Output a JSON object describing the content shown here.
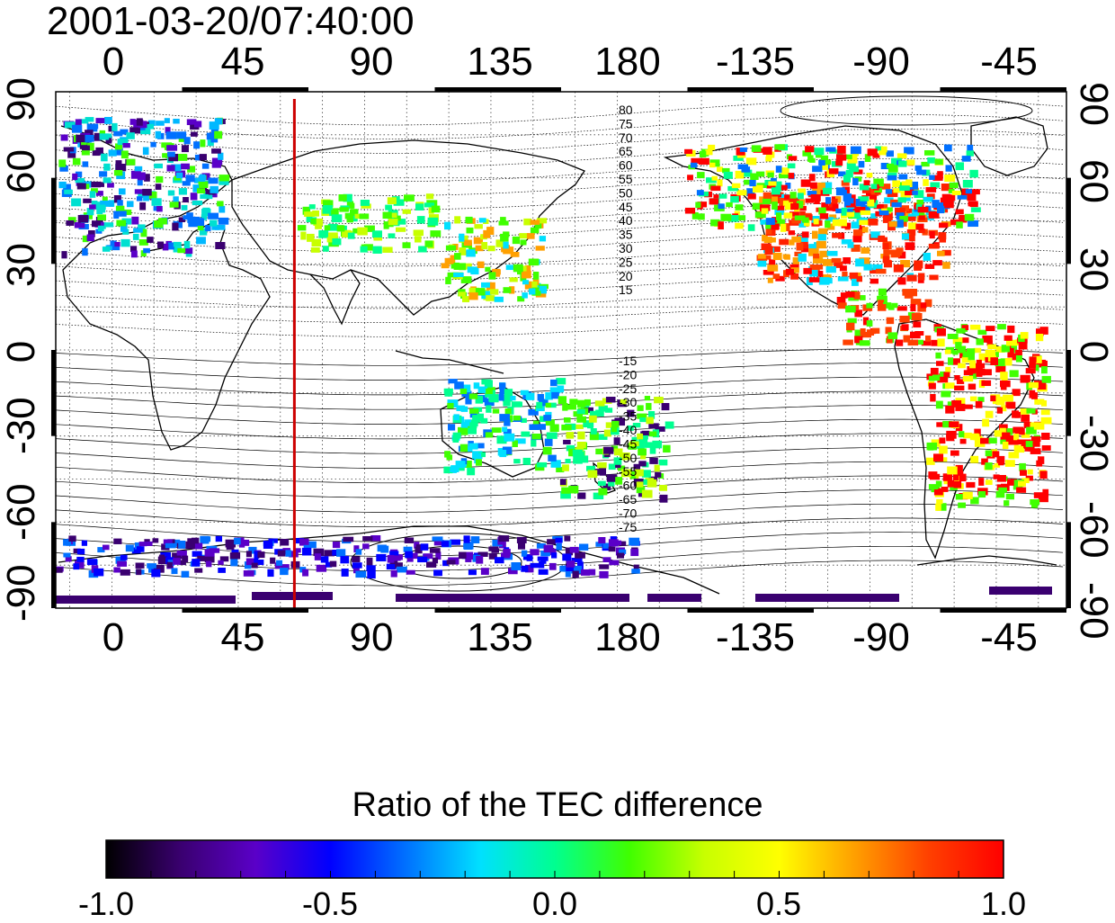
{
  "title": "2001-03-20/07:40:00",
  "map": {
    "x_ticks": [
      "0",
      "45",
      "90",
      "135",
      "180",
      "-135",
      "-90",
      "-45"
    ],
    "y_ticks": [
      "90",
      "60",
      "30",
      "0",
      "-30",
      "-60",
      "-90"
    ],
    "y_ticks_right": [
      "90",
      "60",
      "30",
      "0",
      "-30",
      "-60",
      "-90"
    ],
    "marker_longitude": 65,
    "marker_color": "#cc0000",
    "contour_labels_north": [
      "80",
      "75",
      "70",
      "65",
      "60",
      "55",
      "50",
      "45",
      "40",
      "35",
      "30",
      "25",
      "20",
      "15"
    ],
    "contour_labels_south": [
      "-15",
      "-20",
      "-25",
      "-30",
      "-35",
      "-40",
      "-45",
      "-50",
      "-55",
      "-60",
      "-65",
      "-70",
      "-75"
    ]
  },
  "colorbar": {
    "title": "Ratio of the TEC difference",
    "ticks": [
      "-1.0",
      "-0.5",
      "0.0",
      "0.5",
      "1.0"
    ],
    "colors": [
      "#000000",
      "#3a0070",
      "#5a00c8",
      "#0000ff",
      "#0070ff",
      "#00e0ff",
      "#00ff90",
      "#40ff00",
      "#c8ff00",
      "#ffff00",
      "#ffa000",
      "#ff4000",
      "#ff0000"
    ]
  }
}
